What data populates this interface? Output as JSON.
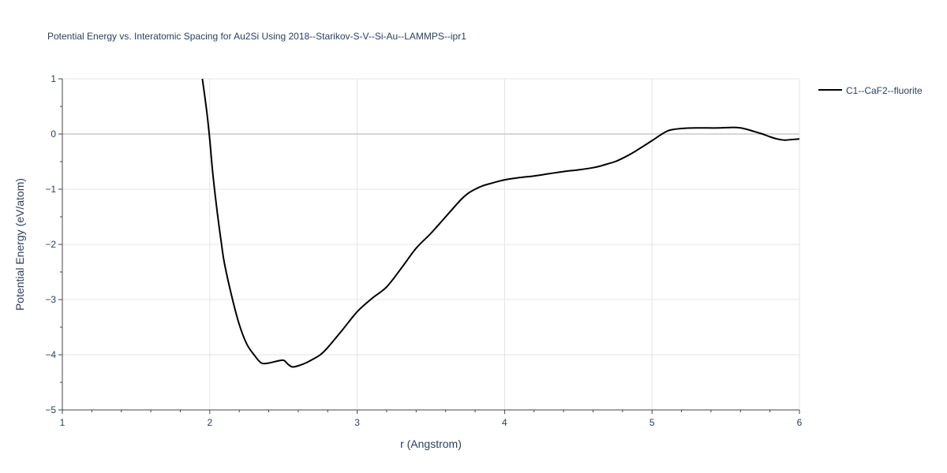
{
  "chart_data": {
    "type": "line",
    "title": "Potential Energy vs. Interatomic Spacing for Au2Si Using 2018--Starikov-S-V--Si-Au--LAMMPS--ipr1",
    "xlabel": "r (Angstrom)",
    "ylabel": "Potential Energy (eV/atom)",
    "xlim": [
      1,
      6
    ],
    "ylim": [
      -5,
      1
    ],
    "xticks": [
      1,
      2,
      3,
      4,
      5,
      6
    ],
    "xtick_labels": [
      "1",
      "2",
      "3",
      "4",
      "5",
      "6"
    ],
    "yticks": [
      1,
      0,
      -1,
      -2,
      -3,
      -4,
      -5
    ],
    "ytick_labels": [
      "1",
      "0",
      "−1",
      "−2",
      "−3",
      "−4",
      "−5"
    ],
    "grid": true,
    "legend_position": "top-right",
    "series": [
      {
        "name": "C1--CaF2--fluorite",
        "color": "#000000",
        "x": [
          1.95,
          1.98,
          2.0,
          2.02,
          2.05,
          2.08,
          2.1,
          2.15,
          2.2,
          2.25,
          2.3,
          2.35,
          2.4,
          2.45,
          2.5,
          2.53,
          2.56,
          2.6,
          2.65,
          2.7,
          2.75,
          2.8,
          2.9,
          3.0,
          3.1,
          3.2,
          3.3,
          3.4,
          3.5,
          3.6,
          3.7,
          3.75,
          3.8,
          3.85,
          3.9,
          4.0,
          4.1,
          4.2,
          4.3,
          4.4,
          4.5,
          4.6,
          4.65,
          4.7,
          4.75,
          4.8,
          4.85,
          4.9,
          5.0,
          5.05,
          5.08,
          5.12,
          5.2,
          5.3,
          5.45,
          5.55,
          5.6,
          5.65,
          5.7,
          5.75,
          5.8,
          5.85,
          5.9,
          5.95,
          6.0
        ],
        "y": [
          1.0,
          0.4,
          -0.1,
          -0.7,
          -1.4,
          -2.0,
          -2.35,
          -2.95,
          -3.45,
          -3.8,
          -4.0,
          -4.15,
          -4.15,
          -4.12,
          -4.1,
          -4.17,
          -4.22,
          -4.2,
          -4.15,
          -4.08,
          -4.0,
          -3.87,
          -3.55,
          -3.22,
          -2.98,
          -2.77,
          -2.43,
          -2.07,
          -1.8,
          -1.5,
          -1.2,
          -1.08,
          -1.0,
          -0.94,
          -0.9,
          -0.83,
          -0.79,
          -0.76,
          -0.72,
          -0.68,
          -0.65,
          -0.61,
          -0.58,
          -0.54,
          -0.5,
          -0.44,
          -0.37,
          -0.29,
          -0.12,
          -0.03,
          0.02,
          0.07,
          0.1,
          0.11,
          0.11,
          0.12,
          0.11,
          0.08,
          0.04,
          0.0,
          -0.05,
          -0.09,
          -0.11,
          -0.1,
          -0.09
        ]
      }
    ]
  }
}
